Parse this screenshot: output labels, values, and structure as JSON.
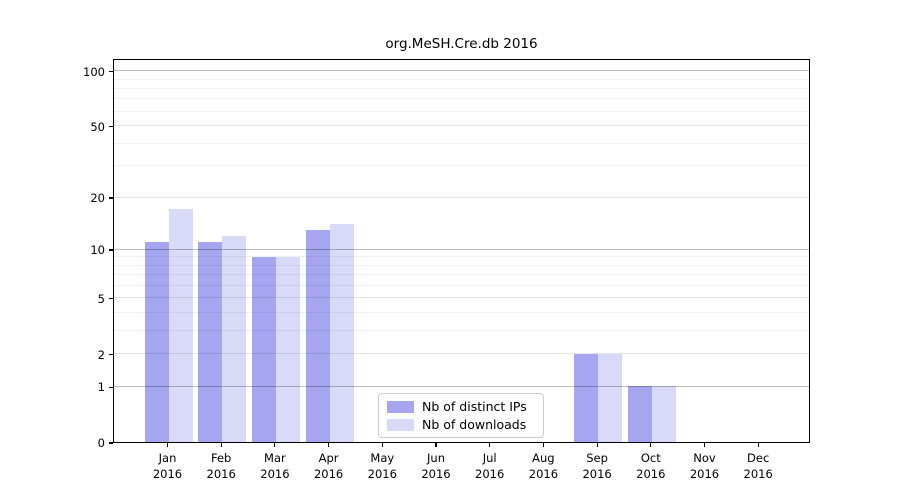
{
  "chart_data": {
    "type": "bar",
    "title": "org.MeSH.Cre.db 2016",
    "categories": [
      "Jan",
      "Feb",
      "Mar",
      "Apr",
      "May",
      "Jun",
      "Jul",
      "Aug",
      "Sep",
      "Oct",
      "Nov",
      "Dec"
    ],
    "year": "2016",
    "series": [
      {
        "name": "Nb of distinct IPs",
        "color": "#a5a5f0",
        "values": [
          11,
          11,
          9,
          13,
          0,
          0,
          0,
          0,
          2,
          1,
          0,
          0
        ]
      },
      {
        "name": "Nb of downloads",
        "color": "#d9d9f8",
        "values": [
          17,
          12,
          9,
          14,
          0,
          0,
          0,
          0,
          2,
          1,
          0,
          0
        ]
      }
    ],
    "y_axis": {
      "scale": "log1p",
      "tick_values": [
        0,
        1,
        2,
        5,
        10,
        20,
        50,
        100
      ],
      "decade_lines": [
        1,
        10,
        100
      ],
      "mid_lines": [
        2,
        5,
        20,
        50
      ],
      "minor_lines": [
        3,
        4,
        6,
        7,
        8,
        9,
        30,
        40,
        60,
        70,
        80,
        90
      ],
      "ylim": [
        0,
        118
      ]
    },
    "legend": {
      "border_color": "#cccccc",
      "position": "lower-center"
    },
    "background": "#ffffff",
    "grid": true
  }
}
